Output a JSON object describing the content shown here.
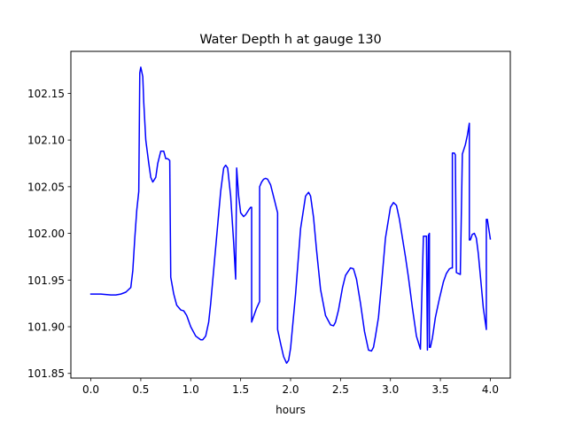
{
  "chart_data": {
    "type": "line",
    "title": "Water Depth h at gauge 130",
    "xlabel": "hours",
    "ylabel": "",
    "xlim": [
      -0.2,
      4.2
    ],
    "ylim": [
      101.845,
      102.195
    ],
    "xticks": [
      0.0,
      0.5,
      1.0,
      1.5,
      2.0,
      2.5,
      3.0,
      3.5,
      4.0
    ],
    "xtick_labels": [
      "0.0",
      "0.5",
      "1.0",
      "1.5",
      "2.0",
      "2.5",
      "3.0",
      "3.5",
      "4.0"
    ],
    "yticks": [
      101.85,
      101.9,
      101.95,
      102.0,
      102.05,
      102.1,
      102.15
    ],
    "ytick_labels": [
      "101.85",
      "101.90",
      "101.95",
      "102.00",
      "102.05",
      "102.10",
      "102.15"
    ],
    "grid": false,
    "legend": "none",
    "series": [
      {
        "color": "#0000ff",
        "x": [
          0.0,
          0.1,
          0.2,
          0.25,
          0.3,
          0.35,
          0.4,
          0.42,
          0.44,
          0.46,
          0.48,
          0.49,
          0.495,
          0.5,
          0.52,
          0.53,
          0.55,
          0.58,
          0.6,
          0.62,
          0.65,
          0.67,
          0.7,
          0.73,
          0.75,
          0.77,
          0.79,
          0.8,
          0.8,
          0.83,
          0.86,
          0.9,
          0.93,
          0.96,
          1.0,
          1.05,
          1.1,
          1.12,
          1.15,
          1.18,
          1.2,
          1.25,
          1.3,
          1.33,
          1.35,
          1.37,
          1.4,
          1.43,
          1.45,
          1.46,
          1.46,
          1.48,
          1.5,
          1.53,
          1.55,
          1.58,
          1.6,
          1.61,
          1.61,
          1.63,
          1.66,
          1.69,
          1.69,
          1.71,
          1.73,
          1.75,
          1.77,
          1.8,
          1.84,
          1.87,
          1.87,
          1.9,
          1.93,
          1.96,
          1.98,
          2.0,
          2.05,
          2.1,
          2.15,
          2.18,
          2.2,
          2.23,
          2.26,
          2.3,
          2.35,
          2.4,
          2.43,
          2.45,
          2.48,
          2.52,
          2.55,
          2.6,
          2.63,
          2.66,
          2.7,
          2.74,
          2.78,
          2.81,
          2.83,
          2.85,
          2.88,
          2.91,
          2.95,
          3.0,
          3.03,
          3.06,
          3.09,
          3.12,
          3.15,
          3.18,
          3.22,
          3.26,
          3.3,
          3.33,
          3.36,
          3.37,
          3.37,
          3.38,
          3.38,
          3.39,
          3.39,
          3.4,
          3.42,
          3.45,
          3.49,
          3.53,
          3.56,
          3.59,
          3.61,
          3.62,
          3.62,
          3.64,
          3.65,
          3.65,
          3.66,
          3.68,
          3.7,
          3.7,
          3.72,
          3.75,
          3.77,
          3.79,
          3.79,
          3.8,
          3.82,
          3.84,
          3.86,
          3.88,
          3.9,
          3.93,
          3.96,
          3.96,
          3.97,
          3.98,
          4.0
        ],
        "y": [
          101.935,
          101.935,
          101.934,
          101.934,
          101.935,
          101.937,
          101.942,
          101.96,
          101.995,
          102.025,
          102.045,
          102.172,
          102.175,
          102.178,
          102.168,
          102.14,
          102.1,
          102.075,
          102.06,
          102.055,
          102.06,
          102.075,
          102.088,
          102.088,
          102.08,
          102.08,
          102.078,
          101.953,
          101.953,
          101.935,
          101.923,
          101.918,
          101.917,
          101.912,
          101.9,
          101.89,
          101.886,
          101.886,
          101.89,
          101.905,
          101.925,
          101.985,
          102.045,
          102.07,
          102.073,
          102.07,
          102.04,
          101.99,
          101.951,
          102.07,
          102.07,
          102.04,
          102.022,
          102.018,
          102.02,
          102.025,
          102.028,
          102.028,
          101.905,
          101.911,
          101.92,
          101.927,
          102.05,
          102.055,
          102.058,
          102.059,
          102.058,
          102.052,
          102.035,
          102.022,
          101.897,
          101.882,
          101.868,
          101.861,
          101.864,
          101.877,
          101.935,
          102.005,
          102.04,
          102.044,
          102.04,
          102.017,
          101.982,
          101.94,
          101.912,
          101.902,
          101.901,
          101.905,
          101.918,
          101.942,
          101.955,
          101.963,
          101.962,
          101.951,
          101.925,
          101.895,
          101.875,
          101.874,
          101.878,
          101.89,
          101.91,
          101.945,
          101.995,
          102.028,
          102.033,
          102.03,
          102.015,
          101.995,
          101.975,
          101.953,
          101.92,
          101.89,
          101.876,
          101.997,
          101.997,
          101.875,
          101.875,
          101.998,
          101.998,
          102.0,
          101.878,
          101.878,
          101.888,
          101.91,
          101.93,
          101.948,
          101.957,
          101.962,
          101.963,
          101.963,
          102.086,
          102.086,
          102.084,
          102.082,
          101.958,
          101.957,
          101.956,
          101.96,
          102.085,
          102.095,
          102.105,
          102.118,
          101.993,
          101.993,
          101.999,
          102.0,
          101.995,
          101.978,
          101.955,
          101.92,
          101.897,
          102.015,
          102.015,
          102.008,
          101.994
        ]
      }
    ]
  }
}
